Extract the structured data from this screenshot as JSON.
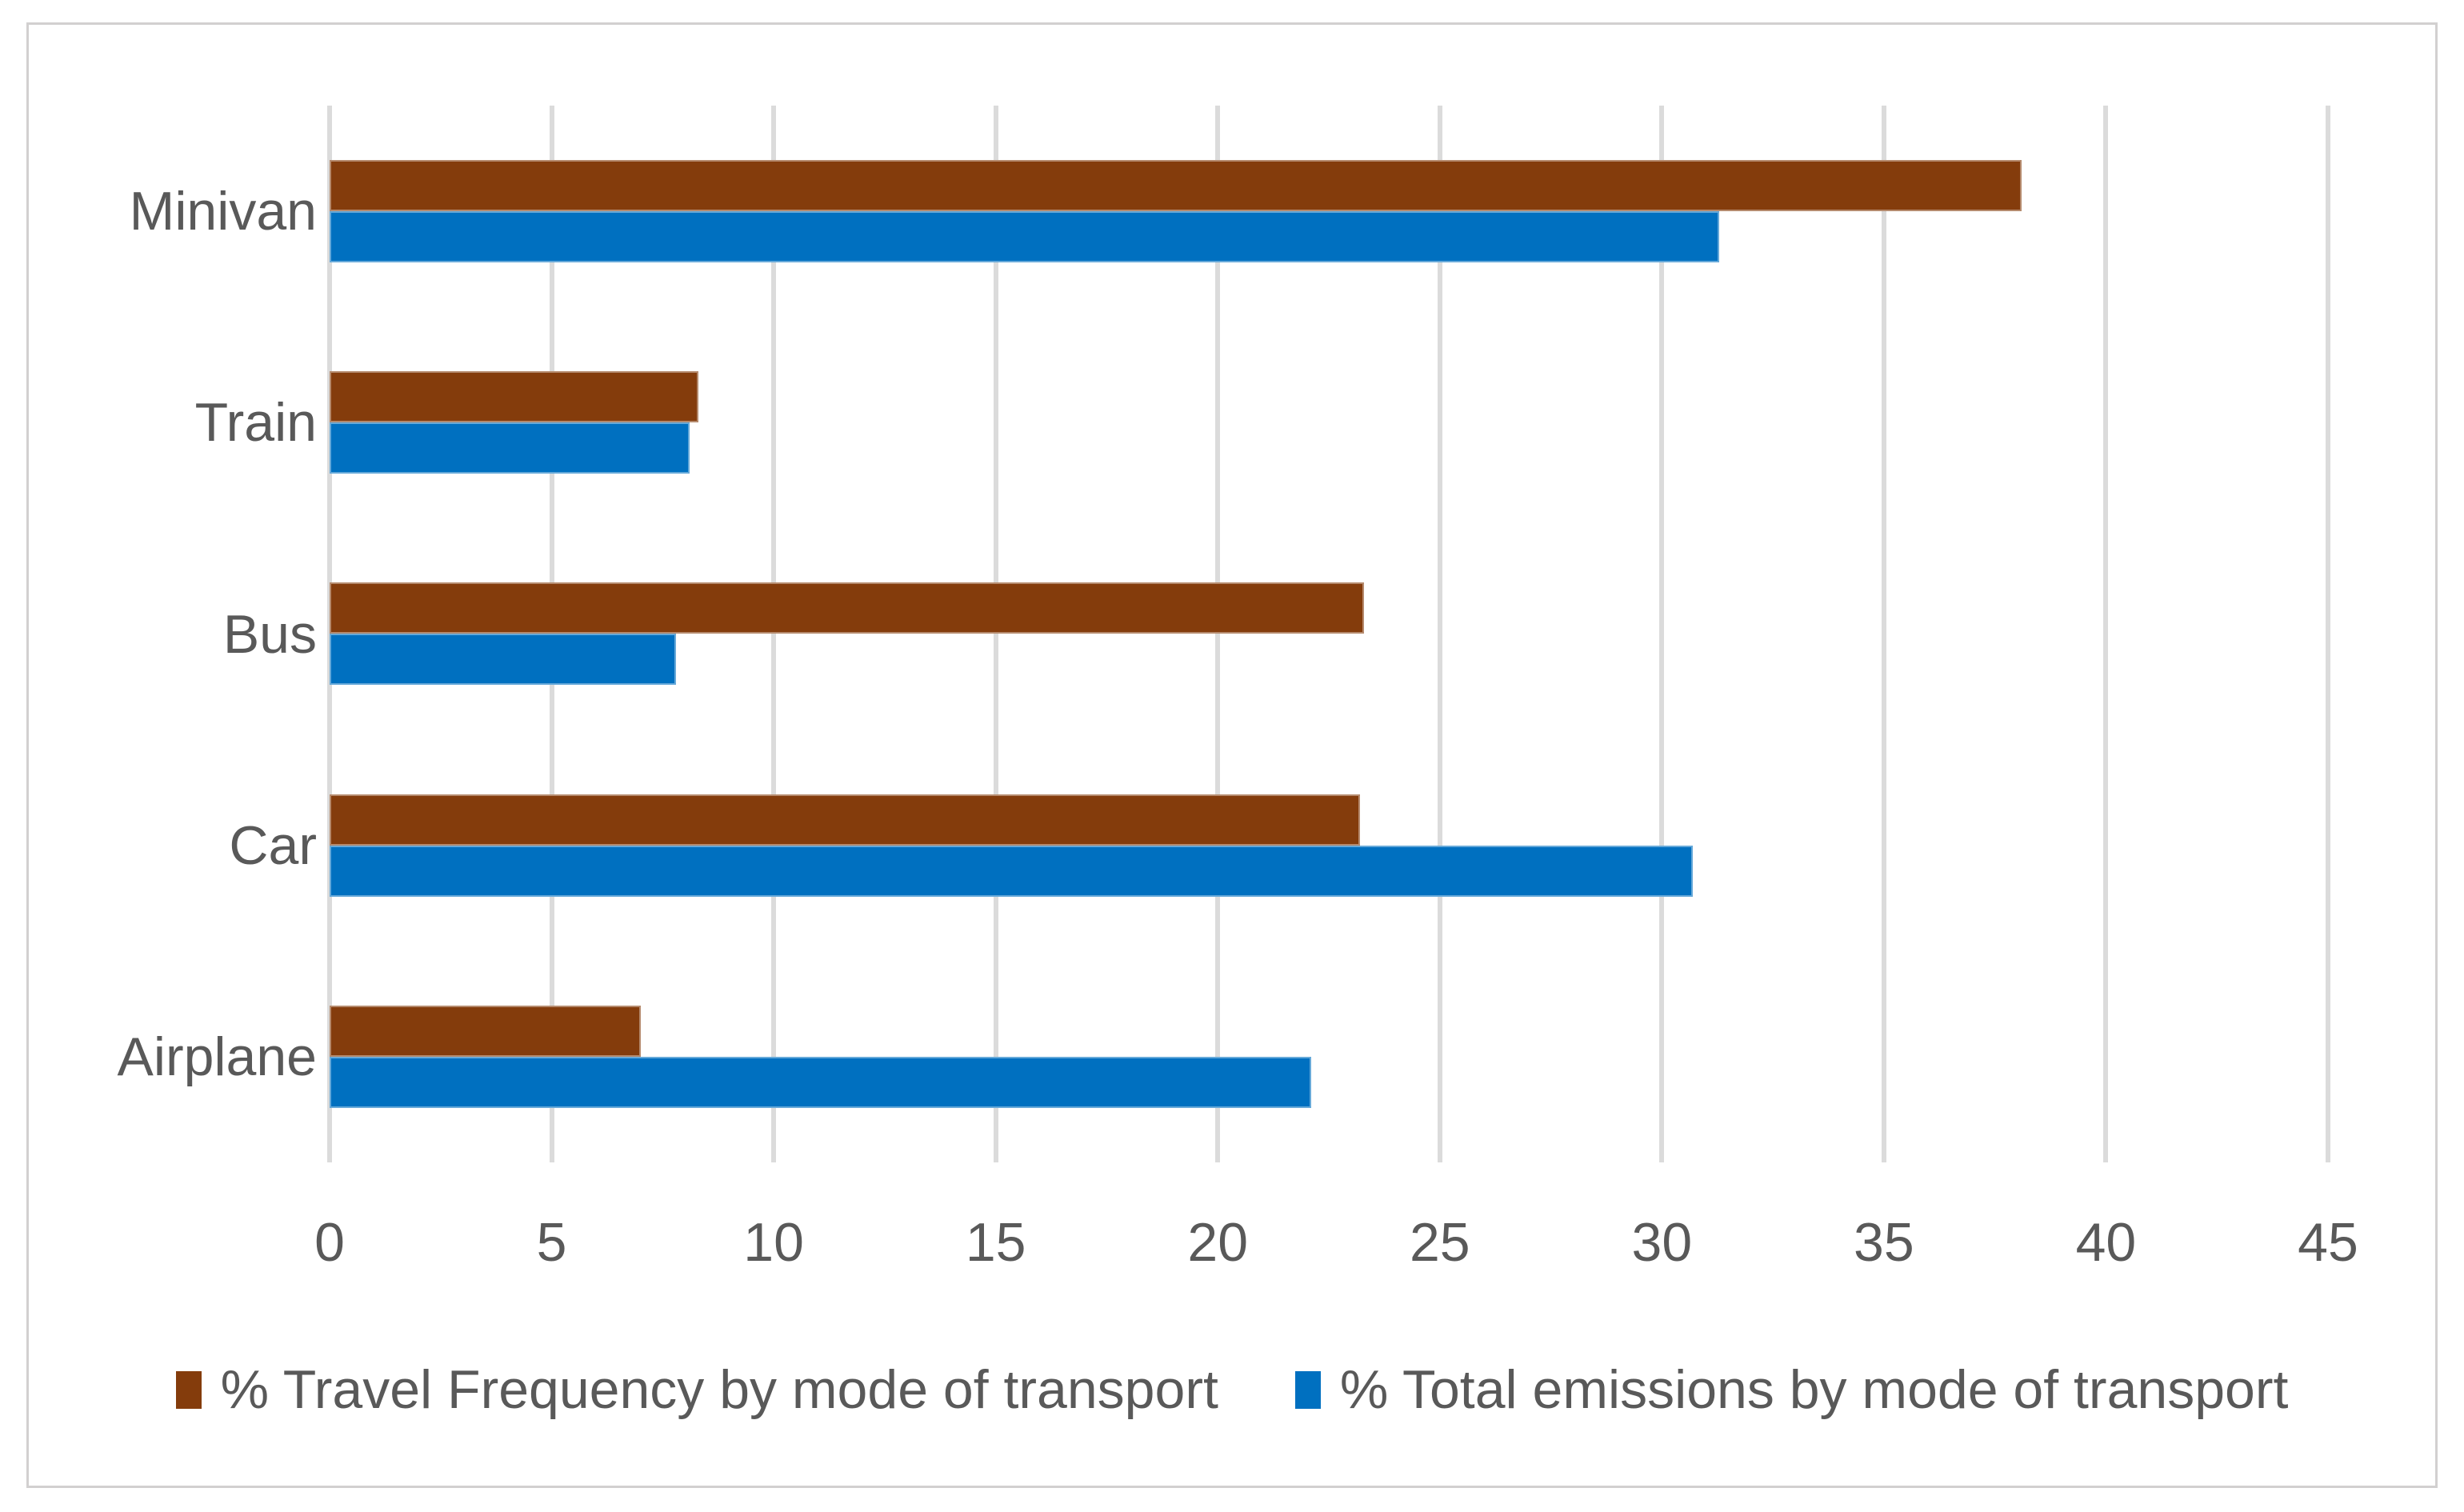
{
  "chart_data": {
    "type": "bar",
    "orientation": "horizontal",
    "title": "",
    "xlabel": "",
    "ylabel": "",
    "categories": [
      "Minivan",
      "Train",
      "Bus",
      "Car",
      "Airplane"
    ],
    "series": [
      {
        "name": "% Travel Frequency by mode of transport",
        "color": "#843C0C",
        "values": [
          38.1,
          8.3,
          23.3,
          23.2,
          7.0
        ]
      },
      {
        "name": "% Total emissions by mode of transport",
        "color": "#0070C0",
        "values": [
          31.3,
          8.1,
          7.8,
          30.7,
          22.1
        ]
      }
    ],
    "xlim": [
      0,
      45
    ],
    "x_ticks": [
      0,
      5,
      10,
      15,
      20,
      25,
      30,
      35,
      40,
      45
    ],
    "grid": true,
    "legend_position": "bottom"
  },
  "colors": {
    "text": "#595959",
    "gridline": "#DBDBDB",
    "frame_border": "#D2D0D0",
    "background": "#FFFFFF"
  }
}
